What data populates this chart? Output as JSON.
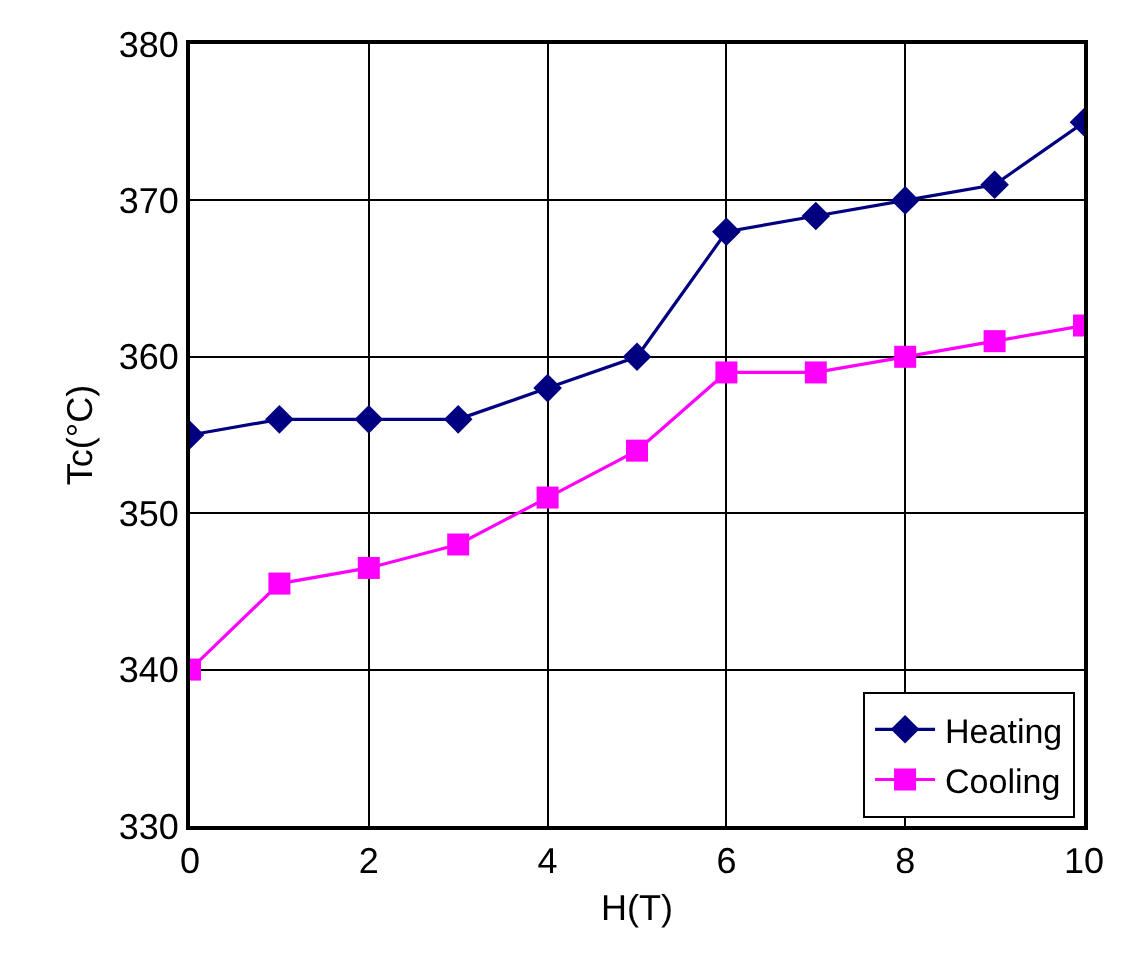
{
  "chart_data": {
    "type": "line",
    "xlabel": "H(T)",
    "ylabel": "Tc(°C)",
    "x": [
      0,
      1,
      2,
      3,
      4,
      5,
      6,
      7,
      8,
      9,
      10
    ],
    "series": [
      {
        "name": "Heating",
        "color": "#000080",
        "marker": "diamond",
        "values": [
          355,
          356,
          356,
          356,
          358,
          360,
          368,
          369,
          370,
          371,
          375
        ]
      },
      {
        "name": "Cooling",
        "color": "#ff00ff",
        "marker": "square",
        "values": [
          340,
          345.5,
          346.5,
          348,
          351,
          354,
          359,
          359,
          360,
          361,
          362
        ]
      }
    ],
    "xlim": [
      0,
      10
    ],
    "xticks": [
      0,
      2,
      4,
      6,
      8,
      10
    ],
    "ylim": [
      330,
      380
    ],
    "yticks": [
      330,
      340,
      350,
      360,
      370,
      380
    ],
    "grid": true,
    "legend": "bottom right",
    "line_style": "solid"
  }
}
